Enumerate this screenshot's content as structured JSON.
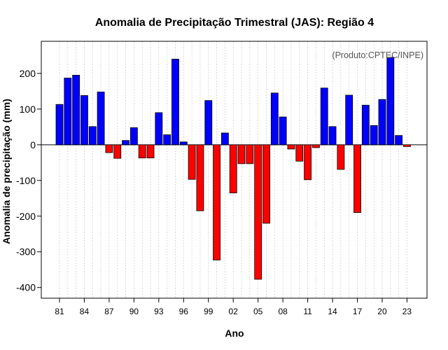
{
  "chart_data": {
    "type": "bar",
    "title": "Anomalia de Precipitação Trimestral (JAS): Região 4",
    "xlabel": "Ano",
    "ylabel": "Anomalia de precipitação (mm)",
    "credit": "(Produto:CPTEC/INPE)",
    "ylim": [
      -430,
      290
    ],
    "yticks": [
      200,
      100,
      0,
      -100,
      -200,
      -300,
      -400
    ],
    "xtick_years": [
      "81",
      "84",
      "87",
      "90",
      "93",
      "96",
      "99",
      "02",
      "05",
      "08",
      "11",
      "14",
      "17",
      "20",
      "23"
    ],
    "grid": "vertical dotted",
    "colors": {
      "positive": "#0000ff",
      "negative": "#ff0000"
    },
    "categories": [
      "1981",
      "1982",
      "1983",
      "1984",
      "1985",
      "1986",
      "1987",
      "1988",
      "1989",
      "1990",
      "1991",
      "1992",
      "1993",
      "1994",
      "1995",
      "1996",
      "1997",
      "1998",
      "1999",
      "2000",
      "2001",
      "2002",
      "2003",
      "2004",
      "2005",
      "2006",
      "2007",
      "2008",
      "2009",
      "2010",
      "2011",
      "2012",
      "2013",
      "2014",
      "2015",
      "2016",
      "2017",
      "2018",
      "2019",
      "2020",
      "2021",
      "2022",
      "2023"
    ],
    "values": [
      113,
      187,
      195,
      138,
      51,
      148,
      -22,
      -38,
      12,
      48,
      -37,
      -37,
      90,
      28,
      240,
      8,
      -97,
      -185,
      124,
      -323,
      33,
      -135,
      -53,
      -53,
      -377,
      -220,
      145,
      78,
      -12,
      -46,
      -98,
      -8,
      159,
      51,
      -69,
      139,
      -190,
      111,
      54,
      127,
      245,
      26,
      -5
    ]
  }
}
